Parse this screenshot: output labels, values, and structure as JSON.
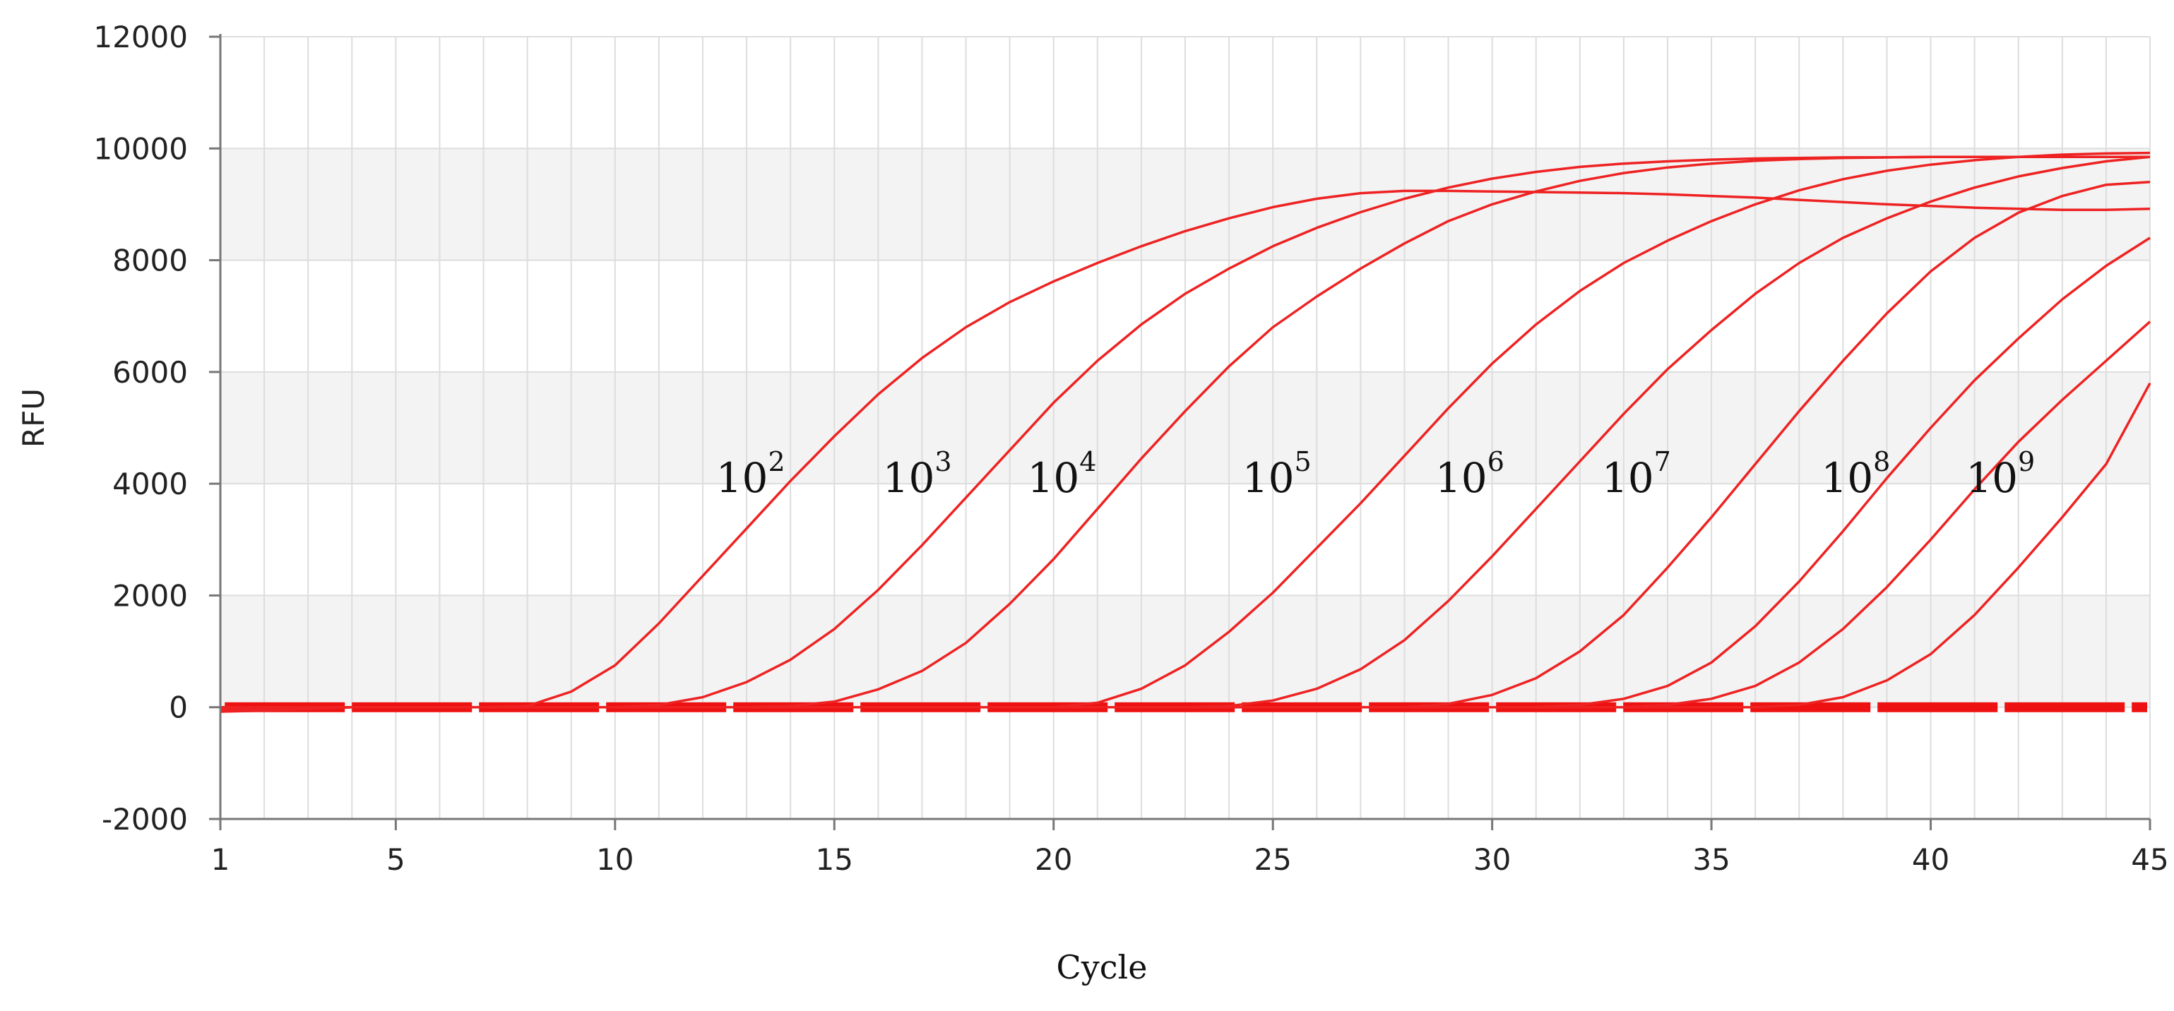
{
  "chart_data": {
    "type": "line",
    "title": "",
    "xlabel": "Cycle",
    "ylabel": "RFU",
    "xlim": [
      1,
      45
    ],
    "ylim": [
      -2000,
      12000
    ],
    "x_ticks": [
      "1",
      "5",
      "10",
      "15",
      "20",
      "25",
      "30",
      "35",
      "40",
      "45"
    ],
    "y_ticks": [
      "-2000",
      "0",
      "2000",
      "4000",
      "6000",
      "8000",
      "10000",
      "12000"
    ],
    "grid": true,
    "legend": "none",
    "line_color": "#ee2222",
    "baseline_color": "#ee1111",
    "band_color": "#f3f3f3",
    "series": [
      {
        "name": "102",
        "label_base": "10",
        "label_exp": "2",
        "label_at": [
          12.3,
          4100
        ],
        "x": [
          1,
          2,
          3,
          4,
          5,
          6,
          7,
          8,
          9,
          10,
          11,
          12,
          13,
          14,
          15,
          16,
          17,
          18,
          19,
          20,
          21,
          22,
          23,
          24,
          25,
          26,
          27,
          28,
          29,
          30,
          31,
          32,
          33,
          34,
          35,
          36,
          37,
          38,
          39,
          40,
          41,
          42,
          43,
          44,
          45
        ],
        "y": [
          -80,
          -60,
          -30,
          0,
          0,
          0,
          0,
          20,
          280,
          750,
          1500,
          2350,
          3200,
          4050,
          4850,
          5600,
          6250,
          6800,
          7250,
          7620,
          7950,
          8250,
          8520,
          8750,
          8950,
          9100,
          9200,
          9240,
          9240,
          9230,
          9220,
          9210,
          9200,
          9180,
          9150,
          9120,
          9080,
          9040,
          9000,
          8970,
          8940,
          8920,
          8900,
          8900,
          8920
        ]
      },
      {
        "name": "103",
        "label_base": "10",
        "label_exp": "3",
        "label_at": [
          16.1,
          4100
        ],
        "x": [
          1,
          2,
          3,
          4,
          5,
          6,
          7,
          8,
          9,
          10,
          11,
          12,
          13,
          14,
          15,
          16,
          17,
          18,
          19,
          20,
          21,
          22,
          23,
          24,
          25,
          26,
          27,
          28,
          29,
          30,
          31,
          32,
          33,
          34,
          35,
          36,
          37,
          38,
          39,
          40,
          41,
          42,
          43,
          44,
          45
        ],
        "y": [
          -60,
          -40,
          -20,
          0,
          0,
          0,
          0,
          0,
          0,
          0,
          40,
          180,
          450,
          850,
          1400,
          2100,
          2900,
          3750,
          4600,
          5450,
          6200,
          6850,
          7400,
          7850,
          8250,
          8580,
          8860,
          9100,
          9300,
          9460,
          9580,
          9670,
          9730,
          9770,
          9800,
          9820,
          9830,
          9840,
          9840,
          9850,
          9850,
          9850,
          9850,
          9850,
          9850
        ]
      },
      {
        "name": "104",
        "label_base": "10",
        "label_exp": "4",
        "label_at": [
          19.4,
          4100
        ],
        "x": [
          1,
          2,
          3,
          4,
          5,
          6,
          7,
          8,
          9,
          10,
          11,
          12,
          13,
          14,
          15,
          16,
          17,
          18,
          19,
          20,
          21,
          22,
          23,
          24,
          25,
          26,
          27,
          28,
          29,
          30,
          31,
          32,
          33,
          34,
          35,
          36,
          37,
          38,
          39,
          40,
          41,
          42,
          43,
          44,
          45
        ],
        "y": [
          -50,
          -30,
          -10,
          0,
          0,
          0,
          0,
          0,
          0,
          0,
          0,
          0,
          0,
          20,
          100,
          320,
          650,
          1150,
          1850,
          2650,
          3550,
          4450,
          5300,
          6100,
          6800,
          7350,
          7850,
          8300,
          8700,
          9000,
          9230,
          9420,
          9560,
          9660,
          9730,
          9780,
          9810,
          9830,
          9840,
          9850,
          9850,
          9850,
          9850,
          9850,
          9850
        ]
      },
      {
        "name": "105",
        "label_base": "10",
        "label_exp": "5",
        "label_at": [
          24.3,
          4100
        ],
        "x": [
          1,
          2,
          3,
          4,
          5,
          6,
          7,
          8,
          9,
          10,
          11,
          12,
          13,
          14,
          15,
          16,
          17,
          18,
          19,
          20,
          21,
          22,
          23,
          24,
          25,
          26,
          27,
          28,
          29,
          30,
          31,
          32,
          33,
          34,
          35,
          36,
          37,
          38,
          39,
          40,
          41,
          42,
          43,
          44,
          45
        ],
        "y": [
          -40,
          -20,
          -10,
          0,
          0,
          0,
          0,
          0,
          0,
          0,
          0,
          0,
          0,
          0,
          0,
          0,
          0,
          0,
          0,
          0,
          80,
          330,
          750,
          1350,
          2050,
          2850,
          3650,
          4500,
          5350,
          6150,
          6850,
          7450,
          7950,
          8350,
          8700,
          9000,
          9250,
          9450,
          9600,
          9710,
          9790,
          9850,
          9890,
          9910,
          9920
        ]
      },
      {
        "name": "106",
        "label_base": "10",
        "label_exp": "6",
        "label_at": [
          28.7,
          4100
        ],
        "x": [
          1,
          2,
          3,
          4,
          5,
          6,
          7,
          8,
          9,
          10,
          11,
          12,
          13,
          14,
          15,
          16,
          17,
          18,
          19,
          20,
          21,
          22,
          23,
          24,
          25,
          26,
          27,
          28,
          29,
          30,
          31,
          32,
          33,
          34,
          35,
          36,
          37,
          38,
          39,
          40,
          41,
          42,
          43,
          44,
          45
        ],
        "y": [
          0,
          0,
          0,
          0,
          0,
          0,
          0,
          0,
          0,
          0,
          0,
          0,
          0,
          0,
          0,
          0,
          0,
          0,
          0,
          0,
          0,
          0,
          0,
          20,
          120,
          330,
          680,
          1200,
          1900,
          2700,
          3550,
          4400,
          5250,
          6050,
          6750,
          7400,
          7950,
          8400,
          8750,
          9050,
          9300,
          9500,
          9650,
          9770,
          9850
        ]
      },
      {
        "name": "107",
        "label_base": "10",
        "label_exp": "7",
        "label_at": [
          32.5,
          4100
        ],
        "x": [
          1,
          2,
          3,
          4,
          5,
          6,
          7,
          8,
          9,
          10,
          11,
          12,
          13,
          14,
          15,
          16,
          17,
          18,
          19,
          20,
          21,
          22,
          23,
          24,
          25,
          26,
          27,
          28,
          29,
          30,
          31,
          32,
          33,
          34,
          35,
          36,
          37,
          38,
          39,
          40,
          41,
          42,
          43,
          44,
          45
        ],
        "y": [
          0,
          0,
          0,
          0,
          0,
          0,
          0,
          0,
          0,
          0,
          0,
          0,
          0,
          0,
          0,
          0,
          0,
          0,
          0,
          0,
          0,
          0,
          0,
          0,
          0,
          0,
          0,
          0,
          60,
          220,
          520,
          1000,
          1650,
          2500,
          3400,
          4350,
          5300,
          6200,
          7050,
          7800,
          8400,
          8850,
          9150,
          9350,
          9400
        ]
      },
      {
        "name": "108",
        "label_base": "10",
        "label_exp": "8",
        "label_at": [
          37.5,
          4100
        ],
        "x": [
          1,
          2,
          3,
          4,
          5,
          6,
          7,
          8,
          9,
          10,
          11,
          12,
          13,
          14,
          15,
          16,
          17,
          18,
          19,
          20,
          21,
          22,
          23,
          24,
          25,
          26,
          27,
          28,
          29,
          30,
          31,
          32,
          33,
          34,
          35,
          36,
          37,
          38,
          39,
          40,
          41,
          42,
          43,
          44,
          45
        ],
        "y": [
          0,
          0,
          0,
          0,
          0,
          0,
          0,
          0,
          0,
          0,
          0,
          0,
          0,
          0,
          0,
          0,
          0,
          0,
          0,
          0,
          0,
          0,
          0,
          0,
          0,
          0,
          0,
          0,
          0,
          0,
          0,
          40,
          150,
          380,
          800,
          1450,
          2250,
          3150,
          4100,
          5000,
          5850,
          6600,
          7300,
          7900,
          8400
        ]
      },
      {
        "name": "109",
        "label_base": "10",
        "label_exp": "9",
        "label_at": [
          40.8,
          4100
        ],
        "x": [
          1,
          2,
          3,
          4,
          5,
          6,
          7,
          8,
          9,
          10,
          11,
          12,
          13,
          14,
          15,
          16,
          17,
          18,
          19,
          20,
          21,
          22,
          23,
          24,
          25,
          26,
          27,
          28,
          29,
          30,
          31,
          32,
          33,
          34,
          35,
          36,
          37,
          38,
          39,
          40,
          41,
          42,
          43,
          44,
          45
        ],
        "y": [
          0,
          0,
          0,
          0,
          0,
          0,
          0,
          0,
          0,
          0,
          0,
          0,
          0,
          0,
          0,
          0,
          0,
          0,
          0,
          0,
          0,
          0,
          0,
          0,
          0,
          0,
          0,
          0,
          0,
          0,
          0,
          0,
          0,
          40,
          150,
          380,
          800,
          1400,
          2150,
          3000,
          3900,
          4750,
          5500,
          6200,
          6900
        ]
      },
      {
        "name": "",
        "label_base": "",
        "label_exp": "",
        "label_at": null,
        "x": [
          1,
          2,
          3,
          4,
          5,
          6,
          7,
          8,
          9,
          10,
          11,
          12,
          13,
          14,
          15,
          16,
          17,
          18,
          19,
          20,
          21,
          22,
          23,
          24,
          25,
          26,
          27,
          28,
          29,
          30,
          31,
          32,
          33,
          34,
          35,
          36,
          37,
          38,
          39,
          40,
          41,
          42,
          43,
          44,
          45
        ],
        "y": [
          0,
          0,
          0,
          0,
          0,
          0,
          0,
          0,
          0,
          0,
          0,
          0,
          0,
          0,
          0,
          0,
          0,
          0,
          0,
          0,
          0,
          0,
          0,
          0,
          0,
          0,
          0,
          0,
          0,
          0,
          0,
          0,
          0,
          0,
          0,
          0,
          40,
          180,
          480,
          950,
          1650,
          2500,
          3400,
          4350,
          5800
        ]
      }
    ]
  }
}
